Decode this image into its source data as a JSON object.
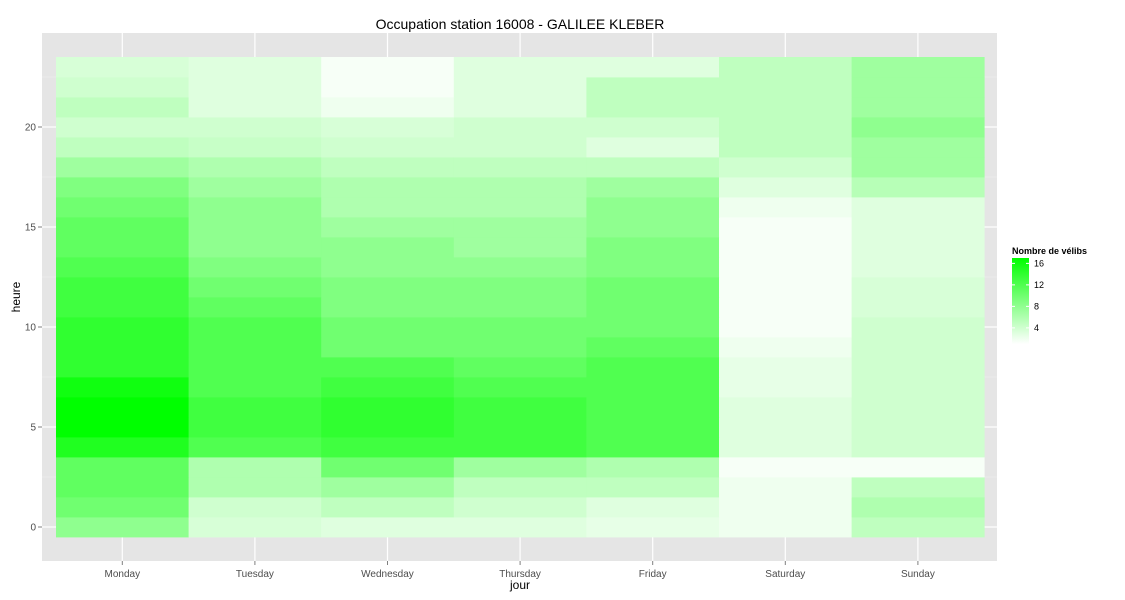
{
  "chart_data": {
    "type": "heatmap",
    "title": "Occupation station 16008 - GALILEE KLEBER",
    "xlabel": "jour",
    "ylabel": "heure",
    "days": [
      "Monday",
      "Tuesday",
      "Wednesday",
      "Thursday",
      "Friday",
      "Saturday",
      "Sunday"
    ],
    "hours": [
      0,
      1,
      2,
      3,
      4,
      5,
      6,
      7,
      8,
      9,
      10,
      11,
      12,
      13,
      14,
      15,
      16,
      17,
      18,
      19,
      20,
      21,
      22,
      23
    ],
    "y_ticks": [
      0,
      5,
      10,
      15,
      20
    ],
    "ylim": [
      -0.5,
      23.5
    ],
    "grid": true,
    "values": [
      [
        8,
        3.5,
        3,
        3,
        2.5,
        2,
        5
      ],
      [
        10,
        4,
        5,
        4,
        3,
        2,
        6
      ],
      [
        11,
        6,
        7,
        5,
        5,
        2,
        5
      ],
      [
        11,
        6,
        10,
        7,
        6,
        1.5,
        1.5
      ],
      [
        15,
        12,
        13,
        13,
        12,
        3,
        4
      ],
      [
        17,
        13,
        14,
        13,
        12,
        3,
        4
      ],
      [
        17,
        13,
        14,
        13,
        12,
        3,
        4
      ],
      [
        16,
        12,
        13,
        12,
        12,
        2.5,
        4
      ],
      [
        14,
        12,
        12,
        11,
        12,
        2.5,
        4
      ],
      [
        14,
        12,
        10,
        10,
        11,
        2,
        4
      ],
      [
        14,
        12,
        10,
        10,
        10,
        1.5,
        4
      ],
      [
        13,
        11,
        9,
        9,
        10,
        1.5,
        3.5
      ],
      [
        13,
        10,
        9,
        9,
        10,
        1.5,
        3.5
      ],
      [
        12,
        9,
        8,
        8,
        9,
        1.5,
        3
      ],
      [
        11,
        8,
        8,
        7,
        9,
        1.5,
        3
      ],
      [
        11,
        8,
        7,
        7,
        8,
        1.5,
        3
      ],
      [
        10,
        8,
        6,
        6,
        8,
        2,
        3
      ],
      [
        9,
        7,
        6,
        6,
        7,
        3,
        5.5
      ],
      [
        7,
        6,
        5,
        5,
        5,
        4,
        7
      ],
      [
        5,
        4.5,
        4,
        4,
        3,
        5,
        7
      ],
      [
        4,
        4,
        3.5,
        4,
        4,
        5,
        8
      ],
      [
        5,
        3,
        2,
        3,
        5,
        5,
        7
      ],
      [
        4,
        3,
        1.5,
        3,
        5,
        5,
        7
      ],
      [
        3.5,
        3,
        1.5,
        3,
        3,
        5,
        7
      ]
    ],
    "color_scale": {
      "low": "#ffffff",
      "high": "#00ff00",
      "min": 1,
      "max": 17
    },
    "legend": {
      "title": "Nombre de vélibs",
      "ticks": [
        4,
        8,
        12,
        16
      ],
      "placement": "right"
    },
    "colors": {
      "panel_background": "#e5e5e5",
      "grid_major": "#ffffff",
      "grid_minor": "#f2f2f2"
    }
  }
}
